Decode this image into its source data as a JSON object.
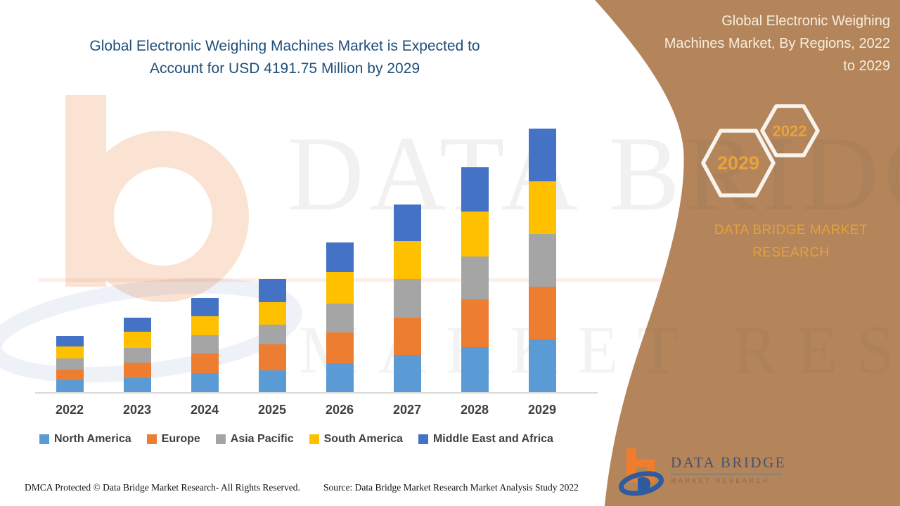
{
  "theme": {
    "panel_brown": "#B4845A",
    "title_blue": "#1F4E79",
    "gold_accent": "#E8A33D",
    "panel_text_cream": "#F6EEDF",
    "axis_line_gray": "#D9D9D9",
    "label_gray": "#3F3F3F",
    "logo_orange": "#EF7D2B",
    "logo_blue": "#2E5C9E"
  },
  "main_title": {
    "line1": "Global Electronic Weighing Machines Market is Expected to",
    "line2": "Account for USD 4191.75 Million by 2029"
  },
  "side_panel": {
    "heading_lines": [
      "Global Electronic Weighing",
      "Machines Market, By Regions, 2022",
      "to 2029"
    ],
    "hexagon_large_label": "2029",
    "hexagon_small_label": "2022",
    "brand_lines": [
      "DATA BRIDGE MARKET",
      "RESEARCH"
    ]
  },
  "chart_data": {
    "type": "bar",
    "stacked": true,
    "categories": [
      "2022",
      "2023",
      "2024",
      "2025",
      "2026",
      "2027",
      "2028",
      "2029"
    ],
    "series": [
      {
        "name": "North America",
        "color": "#5B9BD5",
        "values": [
          17,
          20,
          27,
          31,
          41,
          53,
          64,
          75
        ]
      },
      {
        "name": "Europe",
        "color": "#ED7D31",
        "values": [
          15,
          22,
          28,
          37,
          44,
          53,
          68,
          75
        ]
      },
      {
        "name": "Asia Pacific",
        "color": "#A5A5A5",
        "values": [
          16,
          21,
          26,
          28,
          41,
          55,
          61,
          75
        ]
      },
      {
        "name": "South America",
        "color": "#FFC000",
        "values": [
          17,
          23,
          27,
          32,
          45,
          54,
          64,
          75
        ]
      },
      {
        "name": "Middle East and Africa",
        "color": "#4472C4",
        "values": [
          15,
          20,
          26,
          33,
          42,
          52,
          63,
          75
        ]
      }
    ],
    "totals": [
      80,
      106,
      134,
      161,
      213,
      267,
      320,
      375
    ],
    "value_units": "relative bar height (chart displays no y-axis or value labels)",
    "xlabel": "",
    "ylabel": "",
    "y_axis_visible": false,
    "gridlines": false,
    "legend_position": "bottom"
  },
  "footer": {
    "dmca": "DMCA Protected © Data Bridge Market Research- All Rights Reserved.",
    "source": "Source: Data Bridge Market Research Market Analysis Study 2022"
  },
  "logo": {
    "title": "DATA BRIDGE",
    "subtitle": "MARKET RESEARCH"
  },
  "watermark": {
    "line1": "DATA BRIDGE",
    "line2": "MARKET RESEARCH"
  }
}
